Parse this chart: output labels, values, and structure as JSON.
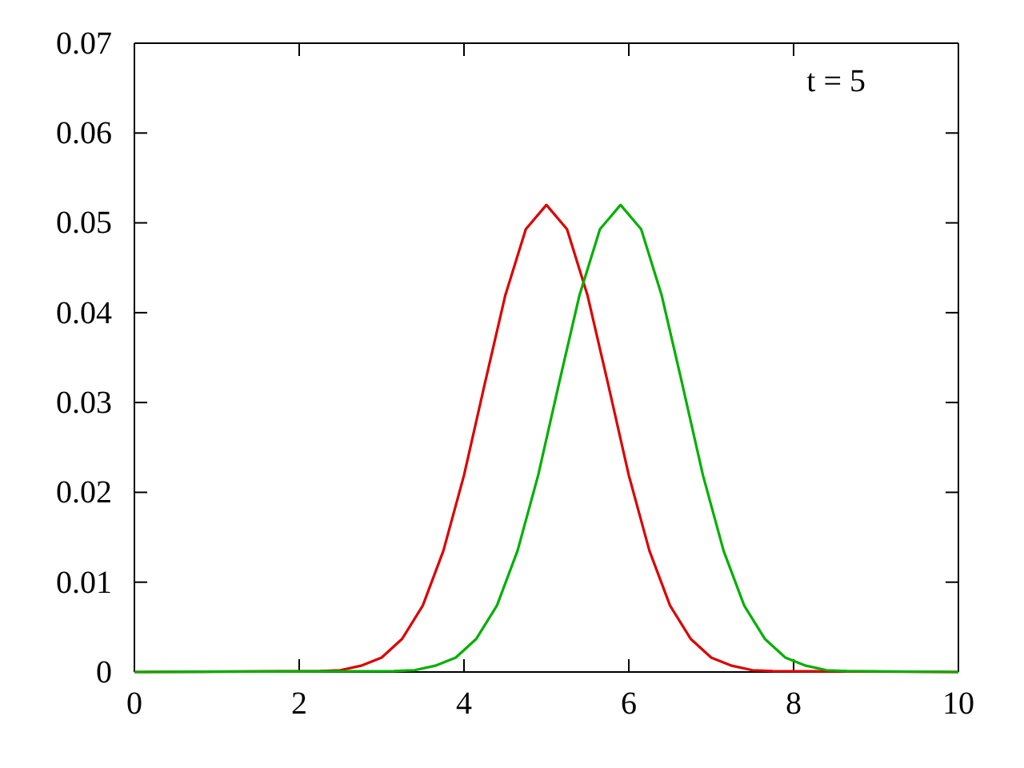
{
  "chart_data": {
    "type": "line",
    "annotations": [
      "t = 5"
    ],
    "xlim": [
      0,
      10
    ],
    "xticks": [
      0,
      2,
      4,
      6,
      8,
      10
    ],
    "ylim": [
      0,
      0.07
    ],
    "yticks": [
      0,
      0.01,
      0.02,
      0.03,
      0.04,
      0.05,
      0.06,
      0.07
    ],
    "grid": false,
    "marker": "none",
    "line_style": "solid",
    "series": [
      {
        "color": "#dd0000",
        "x": [
          0,
          2.25,
          2.5,
          2.75,
          3,
          3.25,
          3.5,
          3.75,
          4,
          4.25,
          4.5,
          4.75,
          5,
          5.25,
          5.5,
          5.75,
          6,
          6.25,
          6.5,
          6.75,
          7,
          7.25,
          7.5,
          7.75,
          10
        ],
        "values": [
          0,
          0.0001,
          0.0002,
          0.0007,
          0.0016,
          0.0037,
          0.0074,
          0.0135,
          0.0219,
          0.032,
          0.0419,
          0.0493,
          0.052,
          0.0493,
          0.0419,
          0.032,
          0.0219,
          0.0135,
          0.0074,
          0.0037,
          0.0016,
          0.0007,
          0.0002,
          0.0001,
          0
        ]
      },
      {
        "color": "#00b000",
        "x": [
          0,
          3.15,
          3.4,
          3.65,
          3.9,
          4.15,
          4.4,
          4.65,
          4.9,
          5.15,
          5.4,
          5.65,
          5.9,
          6.15,
          6.4,
          6.65,
          6.9,
          7.15,
          7.4,
          7.65,
          7.9,
          8.15,
          8.4,
          8.65,
          10
        ],
        "values": [
          0,
          0.0001,
          0.0002,
          0.0007,
          0.0016,
          0.0037,
          0.0074,
          0.0135,
          0.0219,
          0.032,
          0.0419,
          0.0493,
          0.052,
          0.0493,
          0.0419,
          0.032,
          0.0219,
          0.0135,
          0.0074,
          0.0037,
          0.0016,
          0.0007,
          0.0002,
          0.0001,
          0
        ]
      }
    ]
  }
}
